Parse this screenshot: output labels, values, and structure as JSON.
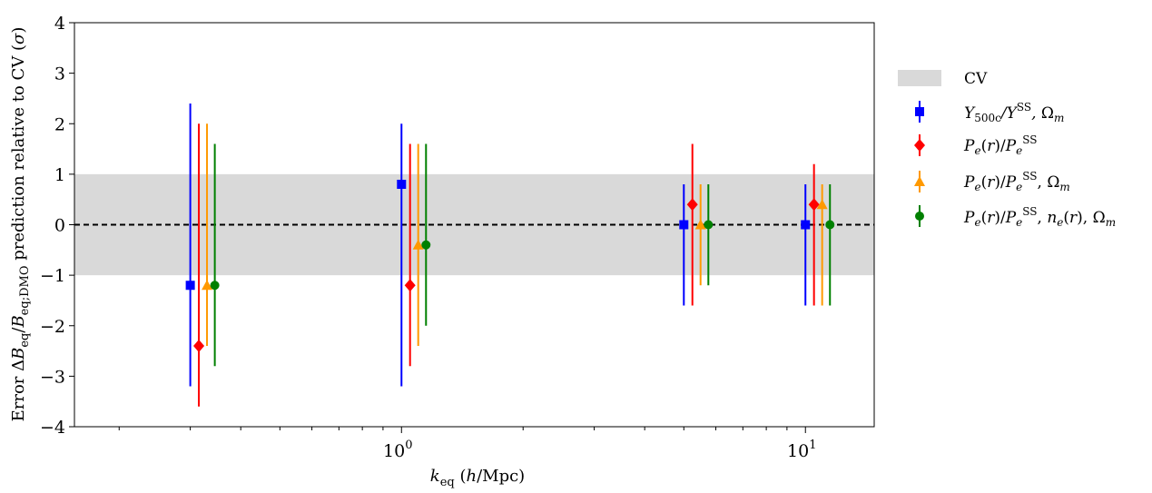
{
  "chart_data": {
    "type": "scatter",
    "title": "",
    "xlabel": "k_eq (h/Mpc)",
    "ylabel": "Error ΔB_eq/B_eq;DMO prediction relative to CV (σ)",
    "xscale": "log",
    "xlim": [
      0.155,
      14.8
    ],
    "ylim": [
      -4,
      4
    ],
    "x_ticks": [
      {
        "value": 1,
        "label": "10",
        "exp": "0"
      },
      {
        "value": 10,
        "label": "10",
        "exp": "1"
      }
    ],
    "y_ticks": [
      {
        "value": 4,
        "label": "4"
      },
      {
        "value": 3,
        "label": "3"
      },
      {
        "value": 2,
        "label": "2"
      },
      {
        "value": 1,
        "label": "1"
      },
      {
        "value": 0,
        "label": "0"
      },
      {
        "value": -1,
        "label": "−1"
      },
      {
        "value": -2,
        "label": "−2"
      },
      {
        "value": -3,
        "label": "−3"
      },
      {
        "value": -4,
        "label": "−4"
      }
    ],
    "cv_band": {
      "name": "CV",
      "ymin": -1,
      "ymax": 1,
      "color": "#d9d9d9"
    },
    "reference_line": {
      "y": 0,
      "style": "dashed",
      "color": "#000000"
    },
    "legend_placement": "outside-right",
    "series": [
      {
        "name": "Y500c/YSS, Ωm",
        "color": "#0000ff",
        "marker": "square",
        "points": [
          {
            "x": 0.3,
            "y": -1.2,
            "lo": -3.2,
            "hi": 2.4
          },
          {
            "x": 1.0,
            "y": 0.8,
            "lo": -3.2,
            "hi": 2.0
          },
          {
            "x": 5.0,
            "y": 0.0,
            "lo": -1.6,
            "hi": 0.8
          },
          {
            "x": 10.0,
            "y": 0.0,
            "lo": -1.6,
            "hi": 0.8
          }
        ]
      },
      {
        "name": "Pe(r)/PeSS",
        "color": "#ff0000",
        "marker": "diamond",
        "points": [
          {
            "x": 0.315,
            "y": -2.4,
            "lo": -3.6,
            "hi": 2.0
          },
          {
            "x": 1.05,
            "y": -1.2,
            "lo": -2.8,
            "hi": 1.6
          },
          {
            "x": 5.25,
            "y": 0.4,
            "lo": -1.6,
            "hi": 1.6
          },
          {
            "x": 10.5,
            "y": 0.4,
            "lo": -1.6,
            "hi": 1.2
          }
        ]
      },
      {
        "name": "Pe(r)/PeSS, Ωm",
        "color": "#ff9900",
        "marker": "triangle",
        "points": [
          {
            "x": 0.33,
            "y": -1.2,
            "lo": -2.4,
            "hi": 2.0
          },
          {
            "x": 1.1,
            "y": -0.4,
            "lo": -2.4,
            "hi": 1.6
          },
          {
            "x": 5.5,
            "y": 0.0,
            "lo": -1.2,
            "hi": 0.8
          },
          {
            "x": 11.0,
            "y": 0.4,
            "lo": -1.6,
            "hi": 0.8
          }
        ]
      },
      {
        "name": "Pe(r)/PeSS, ne(r), Ωm",
        "color": "#008000",
        "marker": "circle",
        "points": [
          {
            "x": 0.345,
            "y": -1.2,
            "lo": -2.8,
            "hi": 1.6
          },
          {
            "x": 1.15,
            "y": -0.4,
            "lo": -2.0,
            "hi": 1.6
          },
          {
            "x": 5.75,
            "y": 0.0,
            "lo": -1.2,
            "hi": 0.8
          },
          {
            "x": 11.5,
            "y": 0.0,
            "lo": -1.6,
            "hi": 0.8
          }
        ]
      }
    ]
  }
}
